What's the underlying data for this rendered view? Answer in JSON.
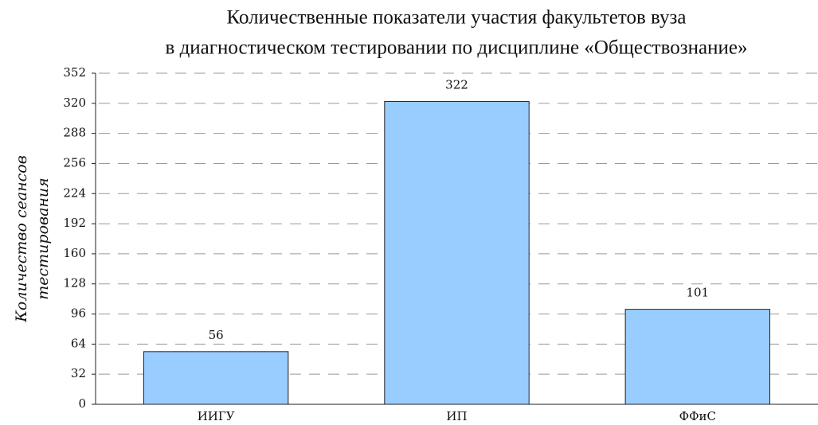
{
  "chart_data": {
    "type": "bar",
    "title": [
      "Количественные показатели участия факультетов вуза",
      "в диагностическом тестировании по дисциплине «Обществознание»"
    ],
    "y_label": [
      "Количество сеансов",
      "тестирования"
    ],
    "categories": [
      "ИИГУ",
      "ИП",
      "ФФиС"
    ],
    "values": [
      56,
      322,
      101
    ],
    "color": "#99ccff",
    "ylim": [
      0,
      352
    ],
    "yticks": [
      0,
      32,
      64,
      96,
      128,
      160,
      192,
      224,
      256,
      288,
      320,
      352
    ],
    "grid": true
  }
}
